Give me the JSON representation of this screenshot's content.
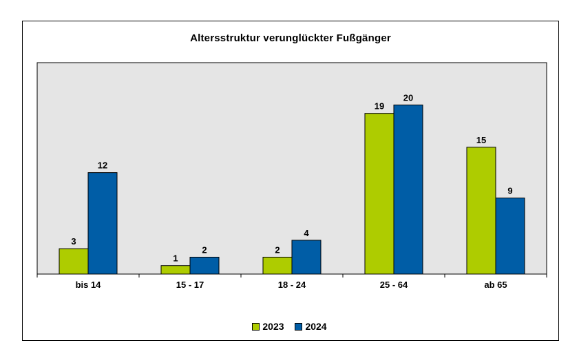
{
  "chart_data": {
    "type": "bar",
    "title": "Altersstruktur verunglückter Fußgänger",
    "categories": [
      "bis 14",
      "15 - 17",
      "18 - 24",
      "25 - 64",
      "ab 65"
    ],
    "series": [
      {
        "name": "2023",
        "values": [
          3,
          1,
          2,
          19,
          15
        ],
        "color": "#AECC00"
      },
      {
        "name": "2024",
        "values": [
          12,
          2,
          4,
          20,
          9
        ],
        "color": "#005DA6"
      }
    ],
    "ylim": [
      0,
      25
    ],
    "grid": false,
    "plot_background": "#E5E5E5",
    "data_labels": true,
    "legend_position": "bottom"
  }
}
